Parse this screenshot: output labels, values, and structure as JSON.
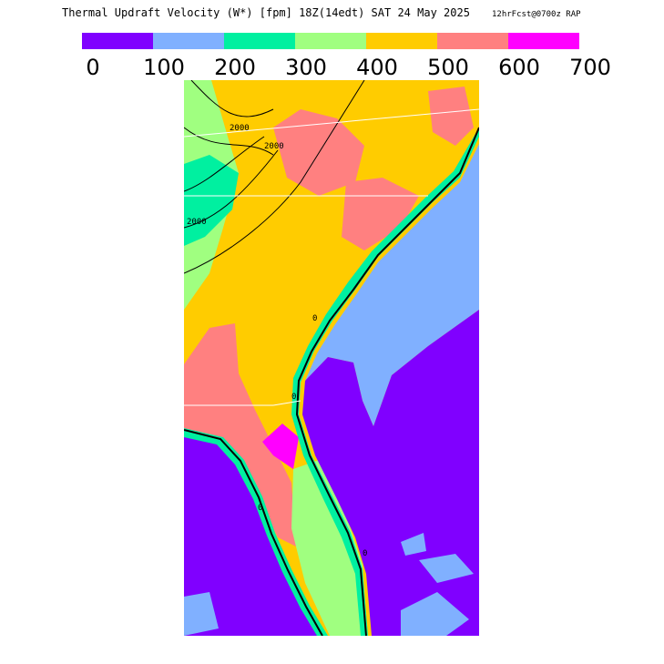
{
  "header": {
    "title": "Thermal Updraft Velocity (W*) [fpm] 18Z(14edt) SAT 24 May 2025",
    "subtitle": "12hrFcst@0700z RAP"
  },
  "colorbar": {
    "ticks": [
      0,
      100,
      200,
      300,
      400,
      500,
      600,
      700
    ],
    "colors": [
      "#8000ff",
      "#80b0ff",
      "#00f0a0",
      "#a0ff80",
      "#ffcc00",
      "#ff8080",
      "#ff00ff"
    ]
  },
  "contour_labels": [
    "2000",
    "2000",
    "2000",
    "0",
    "0",
    "0",
    "0"
  ]
}
